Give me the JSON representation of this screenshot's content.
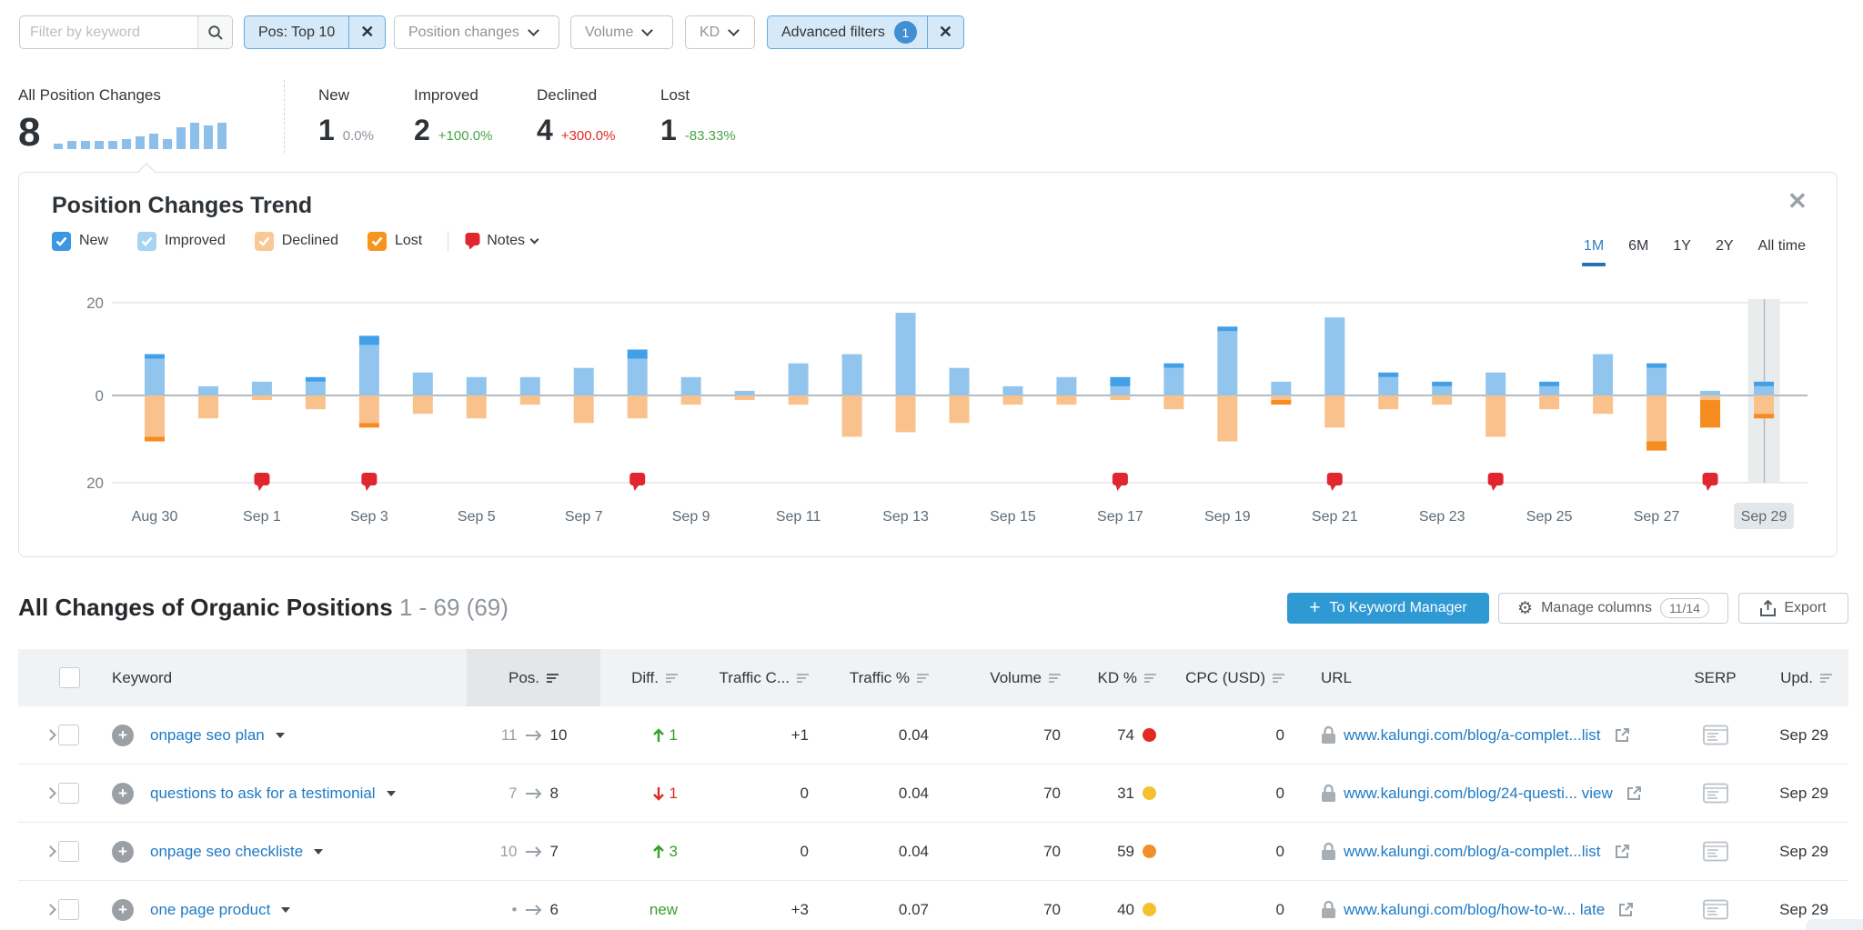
{
  "filters": {
    "keyword_placeholder": "Filter by keyword",
    "pos_chip": "Pos: Top 10",
    "dropdowns": [
      "Position changes",
      "Volume",
      "KD"
    ],
    "advanced_label": "Advanced filters",
    "advanced_count": "1"
  },
  "stats": {
    "all_label": "All Position Changes",
    "all_value": "8",
    "sparkline": [
      6,
      9,
      9,
      9,
      9,
      11,
      14,
      17,
      11,
      24,
      29,
      26,
      29
    ],
    "items": [
      {
        "label": "New",
        "value": "1",
        "delta": "0.0%",
        "delta_color": "gray"
      },
      {
        "label": "Improved",
        "value": "2",
        "delta": "+100.0%",
        "delta_color": "green"
      },
      {
        "label": "Declined",
        "value": "4",
        "delta": "+300.0%",
        "delta_color": "red"
      },
      {
        "label": "Lost",
        "value": "1",
        "delta": "-83.33%",
        "delta_color": "green"
      }
    ]
  },
  "chart": {
    "title": "Position Changes Trend",
    "legend": [
      {
        "label": "New",
        "color": "#3b97e2"
      },
      {
        "label": "Improved",
        "color": "#a9d3f2"
      },
      {
        "label": "Declined",
        "color": "#f9c897"
      },
      {
        "label": "Lost",
        "color": "#f7941e"
      }
    ],
    "notes_label": "Notes",
    "ranges": [
      "1M",
      "6M",
      "1Y",
      "2Y",
      "All time"
    ],
    "active_range": "1M",
    "chart_data": {
      "type": "bar",
      "stacked": true,
      "x": [
        "Aug 30",
        "Aug 31",
        "Sep 1",
        "Sep 2",
        "Sep 3",
        "Sep 4",
        "Sep 5",
        "Sep 6",
        "Sep 7",
        "Sep 8",
        "Sep 9",
        "Sep 10",
        "Sep 11",
        "Sep 12",
        "Sep 13",
        "Sep 14",
        "Sep 15",
        "Sep 16",
        "Sep 17",
        "Sep 18",
        "Sep 19",
        "Sep 20",
        "Sep 21",
        "Sep 22",
        "Sep 23",
        "Sep 24",
        "Sep 25",
        "Sep 26",
        "Sep 27",
        "Sep 28",
        "Sep 29"
      ],
      "series": [
        {
          "name": "Improved",
          "color": "#92c5ee",
          "direction": "up",
          "values": [
            8,
            2,
            3,
            3,
            11,
            5,
            4,
            4,
            6,
            8,
            4,
            1,
            7,
            9,
            18,
            6,
            2,
            4,
            2,
            6,
            14,
            3,
            17,
            4,
            2,
            5,
            2,
            9,
            6,
            1,
            2
          ]
        },
        {
          "name": "New",
          "color": "#41a0e8",
          "direction": "up",
          "values": [
            1,
            0,
            0,
            1,
            2,
            0,
            0,
            0,
            0,
            2,
            0,
            0,
            0,
            0,
            0,
            0,
            0,
            0,
            2,
            1,
            1,
            0,
            0,
            1,
            1,
            0,
            1,
            0,
            1,
            0,
            1
          ]
        },
        {
          "name": "Declined",
          "color": "#f9c28d",
          "direction": "down",
          "values": [
            9,
            5,
            1,
            3,
            6,
            4,
            5,
            2,
            6,
            5,
            2,
            1,
            2,
            9,
            8,
            6,
            2,
            2,
            1,
            3,
            10,
            1,
            7,
            3,
            2,
            9,
            3,
            4,
            10,
            1,
            4
          ]
        },
        {
          "name": "Lost",
          "color": "#f68b1f",
          "direction": "down",
          "values": [
            1,
            0,
            0,
            0,
            1,
            0,
            0,
            0,
            0,
            0,
            0,
            0,
            0,
            0,
            0,
            0,
            0,
            0,
            0,
            0,
            0,
            1,
            0,
            0,
            0,
            0,
            0,
            0,
            2,
            6,
            1
          ]
        }
      ],
      "ylim": [
        -20,
        20
      ],
      "yticks": [
        "20",
        "0",
        "20"
      ],
      "x_label_every": 2,
      "notes_dates": [
        "Sep 1",
        "Sep 3",
        "Sep 8",
        "Sep 17",
        "Sep 21",
        "Sep 24",
        "Sep 28"
      ],
      "highlight_date": "Sep 29"
    }
  },
  "table": {
    "title": "All Changes of Organic Positions",
    "range": "1 - 69 (69)",
    "buttons": {
      "keyword_manager": "To Keyword Manager",
      "manage_columns": "Manage columns",
      "columns_count": "11/14",
      "export": "Export"
    },
    "columns": [
      "Keyword",
      "Pos.",
      "Diff.",
      "Traffic C...",
      "Traffic %",
      "Volume",
      "KD %",
      "CPC (USD)",
      "URL",
      "SERP",
      "Upd."
    ],
    "rows": [
      {
        "keyword": "onpage seo plan",
        "pos_from": "11",
        "pos_to": "10",
        "diff": "1",
        "diff_dir": "up",
        "traffic_c": "+1",
        "traffic_pct": "0.04",
        "volume": "70",
        "kd": "74",
        "kd_color": "#e02b20",
        "cpc": "0",
        "url": "www.kalungi.com/blog/a-complet...list",
        "updated": "Sep 29"
      },
      {
        "keyword": "questions to ask for a testimonial",
        "pos_from": "7",
        "pos_to": "8",
        "diff": "1",
        "diff_dir": "down",
        "traffic_c": "0",
        "traffic_pct": "0.04",
        "volume": "70",
        "kd": "31",
        "kd_color": "#f5c02f",
        "cpc": "0",
        "url": "www.kalungi.com/blog/24-questi... view",
        "updated": "Sep 29"
      },
      {
        "keyword": "onpage seo checkliste",
        "pos_from": "10",
        "pos_to": "7",
        "diff": "3",
        "diff_dir": "up",
        "traffic_c": "0",
        "traffic_pct": "0.04",
        "volume": "70",
        "kd": "59",
        "kd_color": "#f18f2a",
        "cpc": "0",
        "url": "www.kalungi.com/blog/a-complet...list",
        "updated": "Sep 29"
      },
      {
        "keyword": "one page product",
        "pos_from": "•",
        "pos_to": "6",
        "diff": "new",
        "diff_dir": "new",
        "traffic_c": "+3",
        "traffic_pct": "0.07",
        "volume": "70",
        "kd": "40",
        "kd_color": "#f5c02f",
        "cpc": "0",
        "url": "www.kalungi.com/blog/how-to-w... late",
        "updated": "Sep 29"
      }
    ]
  }
}
